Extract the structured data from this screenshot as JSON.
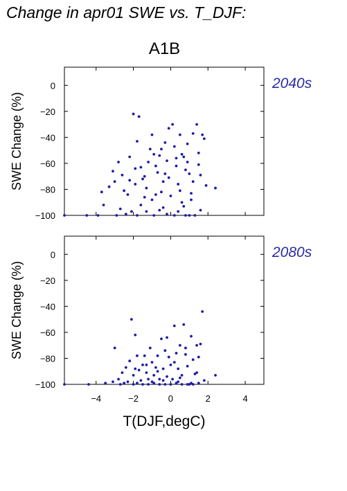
{
  "title": "Change in apr01 SWE vs. T_DJF:",
  "scenario": "A1B",
  "colors": {
    "points": "#1c1ca8",
    "period_label": "#2b2ba8"
  },
  "chart_data": [
    {
      "type": "scatter",
      "period": "2040s",
      "xlabel": "T(DJF,degC)",
      "ylabel": "SWE Change (%)",
      "xlim": [
        -5.7,
        5.0
      ],
      "ylim": [
        -100,
        14
      ],
      "xticks": [
        -4,
        -2,
        0,
        2,
        4
      ],
      "yticks": [
        0,
        -20,
        -40,
        -60,
        -80,
        -100
      ],
      "show_x_tick_labels": false,
      "grid": false,
      "points": [
        [
          -5.7,
          -100
        ],
        [
          -4.5,
          -100
        ],
        [
          -3.9,
          -100
        ],
        [
          -3.6,
          -92
        ],
        [
          -3.7,
          -82
        ],
        [
          -3.3,
          -78
        ],
        [
          -3.1,
          -66
        ],
        [
          -2.8,
          -59
        ],
        [
          -2.6,
          -69
        ],
        [
          -2.5,
          -81
        ],
        [
          -2.4,
          -99
        ],
        [
          -2.3,
          -84
        ],
        [
          -2.0,
          -22
        ],
        [
          -1.9,
          -76
        ],
        [
          -1.7,
          -24
        ],
        [
          -1.6,
          -63
        ],
        [
          -1.5,
          -72
        ],
        [
          -1.4,
          -70
        ],
        [
          -1.2,
          -59
        ],
        [
          -1.1,
          -49
        ],
        [
          -1.0,
          -38
        ],
        [
          -0.9,
          -53
        ],
        [
          -0.8,
          -62
        ],
        [
          -0.7,
          -67
        ],
        [
          -0.5,
          -49
        ],
        [
          -0.5,
          -82
        ],
        [
          -0.4,
          -94
        ],
        [
          -0.3,
          -44
        ],
        [
          -0.2,
          -58
        ],
        [
          -0.1,
          -71
        ],
        [
          0.0,
          -85
        ],
        [
          0.1,
          -30
        ],
        [
          0.2,
          -47
        ],
        [
          0.3,
          -62
        ],
        [
          0.4,
          -76
        ],
        [
          0.5,
          -38
        ],
        [
          0.6,
          -53
        ],
        [
          0.6,
          -90
        ],
        [
          0.7,
          -55
        ],
        [
          0.8,
          -65
        ],
        [
          0.9,
          -45
        ],
        [
          1.0,
          -100
        ],
        [
          1.1,
          -83
        ],
        [
          1.2,
          -74
        ],
        [
          1.4,
          -30
        ],
        [
          1.5,
          -52
        ],
        [
          1.6,
          -69
        ],
        [
          1.7,
          -38
        ],
        [
          1.8,
          -41
        ],
        [
          1.9,
          -77
        ],
        [
          2.4,
          -79
        ],
        [
          -2.9,
          -100
        ],
        [
          -2.7,
          -95
        ],
        [
          -2.1,
          -97
        ],
        [
          -1.8,
          -100
        ],
        [
          -1.6,
          -92
        ],
        [
          -1.3,
          -97
        ],
        [
          -0.9,
          -100
        ],
        [
          -0.6,
          -96
        ],
        [
          -0.2,
          -99
        ],
        [
          0.2,
          -100
        ],
        [
          0.4,
          -97
        ],
        [
          0.8,
          -100
        ],
        [
          1.3,
          -100
        ],
        [
          1.6,
          -96
        ],
        [
          -3.0,
          -74
        ],
        [
          -2.2,
          -55
        ],
        [
          -1.9,
          -64
        ],
        [
          -1.3,
          -79
        ],
        [
          -0.8,
          -84
        ],
        [
          -0.3,
          -68
        ],
        [
          0.3,
          -56
        ],
        [
          0.9,
          -59
        ],
        [
          1.2,
          -37
        ],
        [
          1.5,
          -61
        ],
        [
          -1.8,
          -43
        ],
        [
          -1.0,
          -88
        ],
        [
          -0.6,
          -54
        ],
        [
          -0.1,
          -33
        ],
        [
          0.5,
          -81
        ],
        [
          1.0,
          -68
        ],
        [
          -1.4,
          -86
        ],
        [
          -2.2,
          -73
        ],
        [
          0.7,
          -93
        ],
        [
          1.1,
          -88
        ],
        [
          -0.4,
          -74
        ]
      ]
    },
    {
      "type": "scatter",
      "period": "2080s",
      "xlabel": "T(DJF,degC)",
      "ylabel": "SWE Change (%)",
      "xlim": [
        -5.7,
        5.0
      ],
      "ylim": [
        -100,
        14
      ],
      "xticks": [
        -4,
        -2,
        0,
        2,
        4
      ],
      "yticks": [
        0,
        -20,
        -40,
        -60,
        -80,
        -100
      ],
      "show_x_tick_labels": true,
      "grid": false,
      "points": [
        [
          -5.7,
          -100
        ],
        [
          -4.4,
          -100
        ],
        [
          -3.5,
          -99
        ],
        [
          -3.1,
          -98
        ],
        [
          -2.8,
          -96
        ],
        [
          -2.6,
          -91
        ],
        [
          -2.4,
          -87
        ],
        [
          -2.2,
          -82
        ],
        [
          -2.1,
          -50
        ],
        [
          -2.0,
          -93
        ],
        [
          -1.9,
          -62
        ],
        [
          -1.8,
          -78
        ],
        [
          -1.7,
          -89
        ],
        [
          -1.6,
          -97
        ],
        [
          -1.5,
          -85
        ],
        [
          -1.4,
          -78
        ],
        [
          -1.3,
          -91
        ],
        [
          -1.2,
          -96
        ],
        [
          -1.1,
          -72
        ],
        [
          -1.0,
          -83
        ],
        [
          -0.9,
          -93
        ],
        [
          -0.8,
          -87
        ],
        [
          -0.7,
          -78
        ],
        [
          -0.6,
          -96
        ],
        [
          -0.5,
          -65
        ],
        [
          -0.4,
          -88
        ],
        [
          -0.3,
          -74
        ],
        [
          -0.2,
          -94
        ],
        [
          -0.1,
          -79
        ],
        [
          0.0,
          -85
        ],
        [
          0.1,
          -96
        ],
        [
          0.2,
          -55
        ],
        [
          0.3,
          -76
        ],
        [
          0.4,
          -88
        ],
        [
          0.5,
          -70
        ],
        [
          0.6,
          -93
        ],
        [
          0.7,
          -54
        ],
        [
          0.8,
          -72
        ],
        [
          0.9,
          -86
        ],
        [
          1.0,
          -100
        ],
        [
          1.1,
          -63
        ],
        [
          1.2,
          -81
        ],
        [
          1.3,
          -92
        ],
        [
          1.4,
          -70
        ],
        [
          1.5,
          -79
        ],
        [
          1.6,
          -69
        ],
        [
          1.7,
          -44
        ],
        [
          1.8,
          -97
        ],
        [
          2.4,
          -93
        ],
        [
          -3.0,
          -72
        ],
        [
          -2.7,
          -100
        ],
        [
          -2.3,
          -98
        ],
        [
          -2.0,
          -100
        ],
        [
          -1.8,
          -99
        ],
        [
          -1.5,
          -100
        ],
        [
          -1.2,
          -100
        ],
        [
          -0.9,
          -99
        ],
        [
          -0.6,
          -100
        ],
        [
          -0.3,
          -100
        ],
        [
          0.0,
          -100
        ],
        [
          0.3,
          -99
        ],
        [
          0.6,
          -100
        ],
        [
          0.9,
          -100
        ],
        [
          1.2,
          -100
        ],
        [
          1.5,
          -99
        ],
        [
          -2.5,
          -99
        ],
        [
          -1.0,
          -98
        ],
        [
          -0.4,
          -97
        ],
        [
          0.4,
          -98
        ],
        [
          1.1,
          -99
        ],
        [
          -1.3,
          -85
        ],
        [
          -0.7,
          -90
        ],
        [
          0.2,
          -83
        ],
        [
          0.8,
          -77
        ],
        [
          1.4,
          -91
        ],
        [
          -1.9,
          -88
        ],
        [
          -0.2,
          -64
        ],
        [
          0.5,
          -95
        ]
      ]
    }
  ]
}
